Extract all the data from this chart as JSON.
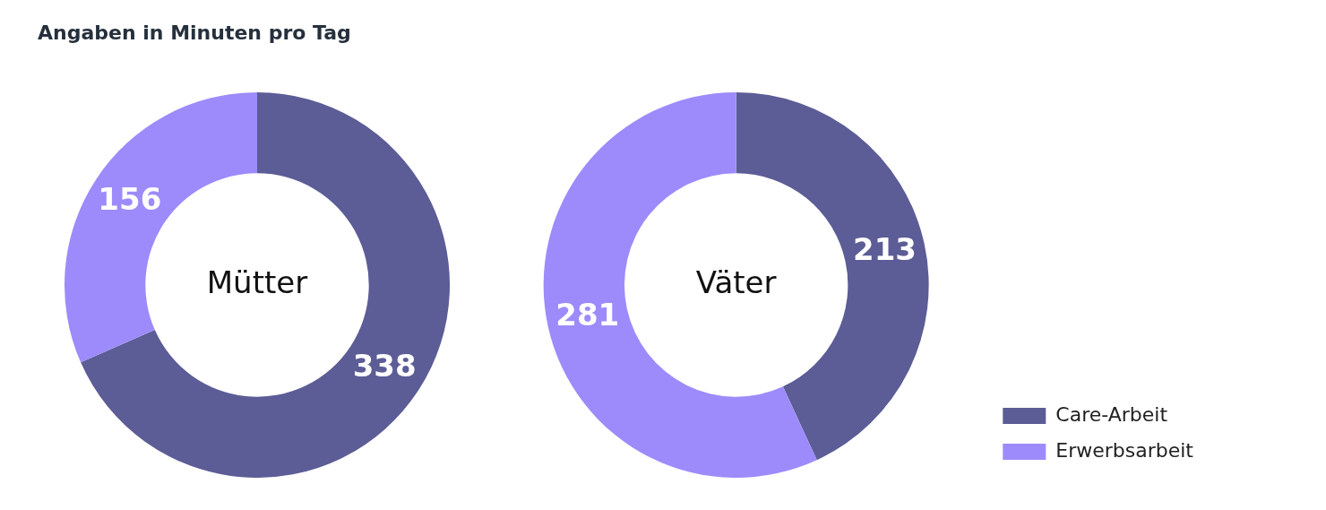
{
  "chart_data": {
    "type": "donut",
    "title": "Angaben in Minuten pro Tag",
    "categories": [
      "Care-Arbeit",
      "Erwerbsarbeit"
    ],
    "colors": [
      "#5c5c96",
      "#9d8bfb"
    ],
    "data_labels": true,
    "legend": "bottom right",
    "series": [
      {
        "name": "Mütter",
        "values": [
          338,
          156
        ]
      },
      {
        "name": "Väter",
        "values": [
          213,
          281
        ]
      }
    ]
  }
}
